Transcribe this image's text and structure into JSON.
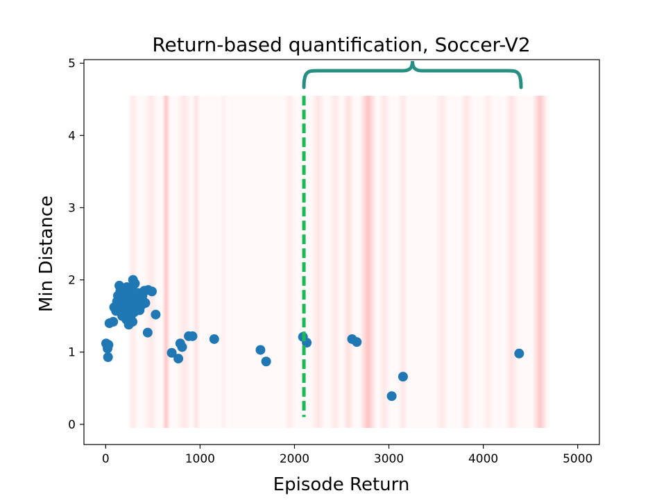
{
  "chart_data": {
    "type": "scatter",
    "title": "Return-based quantification, Soccer-V2",
    "xlabel": "Episode Return",
    "ylabel": "Min Distance",
    "xlim": [
      -230,
      5230
    ],
    "ylim": [
      -0.28,
      5.05
    ],
    "x_ticks": [
      0,
      1000,
      2000,
      3000,
      4000,
      5000
    ],
    "y_ticks": [
      0,
      1,
      2,
      3,
      4,
      5
    ],
    "grid": false,
    "legend": "none",
    "point_color": "#1f77b4",
    "points": [
      {
        "x": 5,
        "y": 1.12
      },
      {
        "x": 20,
        "y": 1.05
      },
      {
        "x": 30,
        "y": 1.1
      },
      {
        "x": 25,
        "y": 0.93
      },
      {
        "x": 40,
        "y": 1.4
      },
      {
        "x": 80,
        "y": 1.42
      },
      {
        "x": 90,
        "y": 1.62
      },
      {
        "x": 110,
        "y": 1.57
      },
      {
        "x": 120,
        "y": 1.7
      },
      {
        "x": 130,
        "y": 1.78
      },
      {
        "x": 140,
        "y": 1.65
      },
      {
        "x": 145,
        "y": 1.92
      },
      {
        "x": 155,
        "y": 1.84
      },
      {
        "x": 160,
        "y": 1.58
      },
      {
        "x": 170,
        "y": 1.72
      },
      {
        "x": 175,
        "y": 1.5
      },
      {
        "x": 185,
        "y": 1.8
      },
      {
        "x": 190,
        "y": 1.63
      },
      {
        "x": 195,
        "y": 1.75
      },
      {
        "x": 205,
        "y": 1.55
      },
      {
        "x": 210,
        "y": 1.87
      },
      {
        "x": 215,
        "y": 1.68
      },
      {
        "x": 220,
        "y": 1.45
      },
      {
        "x": 225,
        "y": 1.9
      },
      {
        "x": 230,
        "y": 1.6
      },
      {
        "x": 235,
        "y": 1.78
      },
      {
        "x": 240,
        "y": 1.52
      },
      {
        "x": 245,
        "y": 1.38
      },
      {
        "x": 250,
        "y": 1.7
      },
      {
        "x": 255,
        "y": 1.83
      },
      {
        "x": 260,
        "y": 1.62
      },
      {
        "x": 265,
        "y": 1.48
      },
      {
        "x": 270,
        "y": 1.75
      },
      {
        "x": 275,
        "y": 1.58
      },
      {
        "x": 280,
        "y": 1.9
      },
      {
        "x": 285,
        "y": 1.42
      },
      {
        "x": 290,
        "y": 2.0
      },
      {
        "x": 295,
        "y": 1.68
      },
      {
        "x": 300,
        "y": 1.55
      },
      {
        "x": 305,
        "y": 1.8
      },
      {
        "x": 310,
        "y": 1.95
      },
      {
        "x": 320,
        "y": 1.72
      },
      {
        "x": 330,
        "y": 1.6
      },
      {
        "x": 340,
        "y": 1.82
      },
      {
        "x": 360,
        "y": 1.58
      },
      {
        "x": 380,
        "y": 1.65
      },
      {
        "x": 390,
        "y": 1.78
      },
      {
        "x": 400,
        "y": 1.7
      },
      {
        "x": 410,
        "y": 1.85
      },
      {
        "x": 420,
        "y": 1.68
      },
      {
        "x": 445,
        "y": 1.27
      },
      {
        "x": 450,
        "y": 1.86
      },
      {
        "x": 490,
        "y": 1.84
      },
      {
        "x": 530,
        "y": 1.52
      },
      {
        "x": 700,
        "y": 0.99
      },
      {
        "x": 770,
        "y": 0.91
      },
      {
        "x": 790,
        "y": 1.12
      },
      {
        "x": 810,
        "y": 1.07
      },
      {
        "x": 880,
        "y": 1.22
      },
      {
        "x": 920,
        "y": 1.22
      },
      {
        "x": 1150,
        "y": 1.18
      },
      {
        "x": 1640,
        "y": 1.03
      },
      {
        "x": 1700,
        "y": 0.87
      },
      {
        "x": 2090,
        "y": 1.21
      },
      {
        "x": 2130,
        "y": 1.13
      },
      {
        "x": 2610,
        "y": 1.18
      },
      {
        "x": 2660,
        "y": 1.14
      },
      {
        "x": 3030,
        "y": 0.39
      },
      {
        "x": 3150,
        "y": 0.66
      },
      {
        "x": 4380,
        "y": 0.98
      }
    ],
    "threshold_line": {
      "x": 2100,
      "y_range": [
        0.1,
        4.55
      ],
      "color": "#1db954",
      "style": "dashed"
    },
    "brace": {
      "x_range": [
        2100,
        4400
      ],
      "y": 4.8,
      "color": "#278f82"
    },
    "background_bands": {
      "color": "#ff0000",
      "x_range": [
        250,
        4700
      ],
      "y_range": [
        -0.05,
        4.55
      ],
      "bands": [
        {
          "center": 290,
          "width": 110,
          "opacity": 0.06
        },
        {
          "center": 480,
          "width": 140,
          "opacity": 0.07
        },
        {
          "center": 640,
          "width": 90,
          "opacity": 0.2
        },
        {
          "center": 830,
          "width": 160,
          "opacity": 0.07
        },
        {
          "center": 960,
          "width": 90,
          "opacity": 0.09
        },
        {
          "center": 1250,
          "width": 90,
          "opacity": 0.04
        },
        {
          "center": 1950,
          "width": 120,
          "opacity": 0.06
        },
        {
          "center": 2250,
          "width": 140,
          "opacity": 0.09
        },
        {
          "center": 2430,
          "width": 140,
          "opacity": 0.07
        },
        {
          "center": 2570,
          "width": 120,
          "opacity": 0.1
        },
        {
          "center": 2780,
          "width": 180,
          "opacity": 0.22
        },
        {
          "center": 2950,
          "width": 130,
          "opacity": 0.07
        },
        {
          "center": 3150,
          "width": 120,
          "opacity": 0.07
        },
        {
          "center": 3560,
          "width": 140,
          "opacity": 0.07
        },
        {
          "center": 3820,
          "width": 140,
          "opacity": 0.08
        },
        {
          "center": 4050,
          "width": 120,
          "opacity": 0.06
        },
        {
          "center": 4300,
          "width": 150,
          "opacity": 0.09
        },
        {
          "center": 4600,
          "width": 160,
          "opacity": 0.2
        }
      ]
    }
  }
}
